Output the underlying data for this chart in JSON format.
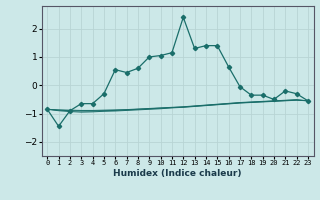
{
  "xlabel": "Humidex (Indice chaleur)",
  "background_color": "#cce8e8",
  "grid_color": "#b8d4d4",
  "line_color": "#1a6e6a",
  "x_values": [
    0,
    1,
    2,
    3,
    4,
    5,
    6,
    7,
    8,
    9,
    10,
    11,
    12,
    13,
    14,
    15,
    16,
    17,
    18,
    19,
    20,
    21,
    22,
    23
  ],
  "main_y": [
    -0.85,
    -1.45,
    -0.9,
    -0.65,
    -0.65,
    -0.3,
    0.55,
    0.45,
    0.6,
    1.0,
    1.05,
    1.15,
    2.4,
    1.3,
    1.4,
    1.4,
    0.65,
    -0.05,
    -0.35,
    -0.35,
    -0.5,
    -0.2,
    -0.3,
    -0.55
  ],
  "flat1_y": [
    -0.85,
    -0.87,
    -0.88,
    -0.89,
    -0.89,
    -0.88,
    -0.87,
    -0.86,
    -0.84,
    -0.82,
    -0.8,
    -0.78,
    -0.76,
    -0.73,
    -0.7,
    -0.67,
    -0.64,
    -0.61,
    -0.59,
    -0.57,
    -0.55,
    -0.53,
    -0.51,
    -0.55
  ],
  "flat2_y": [
    -0.85,
    -0.88,
    -0.9,
    -0.91,
    -0.91,
    -0.9,
    -0.89,
    -0.87,
    -0.85,
    -0.83,
    -0.81,
    -0.79,
    -0.77,
    -0.74,
    -0.71,
    -0.68,
    -0.65,
    -0.62,
    -0.6,
    -0.58,
    -0.56,
    -0.54,
    -0.52,
    -0.55
  ],
  "flat3_y": [
    -0.85,
    -0.9,
    -0.93,
    -0.95,
    -0.94,
    -0.92,
    -0.91,
    -0.89,
    -0.87,
    -0.85,
    -0.83,
    -0.8,
    -0.78,
    -0.75,
    -0.72,
    -0.69,
    -0.66,
    -0.63,
    -0.61,
    -0.59,
    -0.57,
    -0.55,
    -0.53,
    -0.55
  ],
  "ylim": [
    -2.5,
    2.8
  ],
  "yticks": [
    -2,
    -1,
    0,
    1,
    2
  ],
  "xlim": [
    -0.5,
    23.5
  ]
}
